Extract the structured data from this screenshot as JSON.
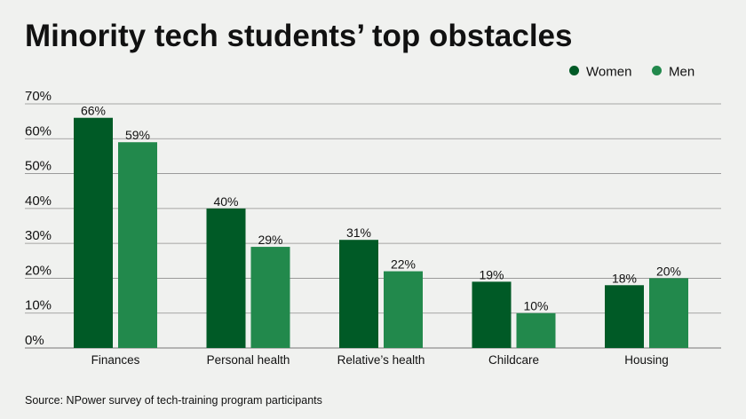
{
  "chart_data": {
    "type": "bar",
    "title": "Minority tech students’ top obstacles",
    "categories": [
      "Finances",
      "Personal health",
      "Relative’s health",
      "Childcare",
      "Housing"
    ],
    "series": [
      {
        "name": "Women",
        "values": [
          66,
          40,
          31,
          19,
          18
        ],
        "color": "#005a26"
      },
      {
        "name": "Men",
        "values": [
          59,
          29,
          22,
          10,
          20
        ],
        "color": "#22894c"
      }
    ],
    "ylim": [
      0,
      70
    ],
    "y_ticks": [
      "0%",
      "10%",
      "20%",
      "30%",
      "40%",
      "50%",
      "60%",
      "70%"
    ],
    "value_suffix": "%",
    "legend_position": "top-right",
    "grid": true,
    "source": "Source: NPower survey of tech-training program participants"
  }
}
